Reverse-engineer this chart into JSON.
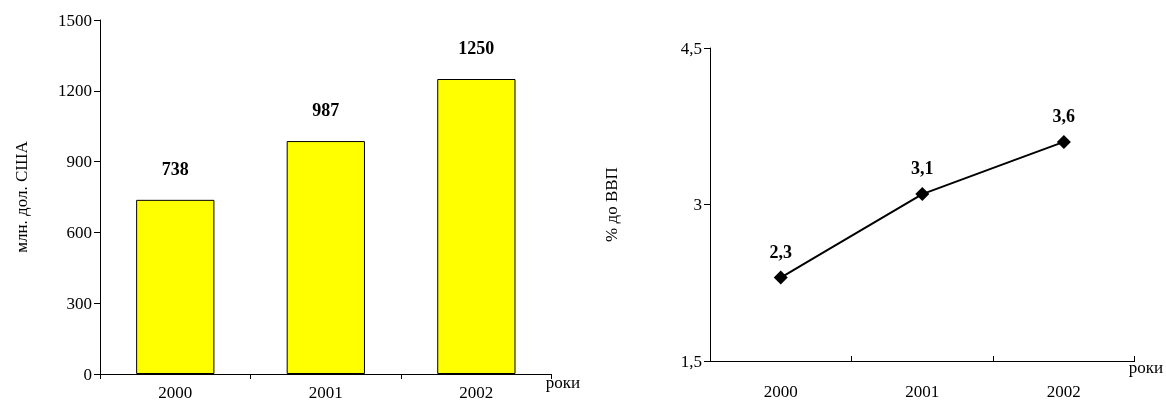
{
  "chart_data": [
    {
      "type": "bar",
      "categories": [
        "2000",
        "2001",
        "2002"
      ],
      "values": [
        738,
        987,
        1250
      ],
      "color": "#ffff00",
      "ylim": [
        0,
        1500
      ],
      "yticks": [
        0,
        300,
        600,
        900,
        1200,
        1500
      ],
      "ylabel": "млн. дол. США",
      "xlabel": "роки",
      "data_labels": true,
      "grid": false
    },
    {
      "type": "line",
      "categories": [
        "2000",
        "2001",
        "2002"
      ],
      "values": [
        2.3,
        3.1,
        3.6
      ],
      "value_labels": [
        "2,3",
        "3,1",
        "3,6"
      ],
      "color": "#000000",
      "marker": "diamond",
      "line_style": "solid",
      "ylim": [
        1.5,
        4.5
      ],
      "yticks": [
        {
          "value": 1.5,
          "label": "1,5"
        },
        3,
        {
          "value": 4.5,
          "label": "4,5"
        }
      ],
      "ylabel": "% до ВВП",
      "xlabel": "роки",
      "grid": false
    }
  ]
}
